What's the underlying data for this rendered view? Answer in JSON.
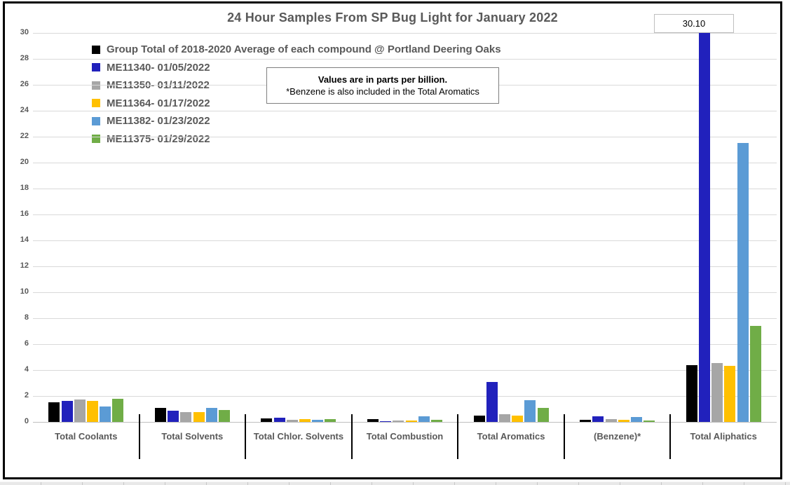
{
  "chart_data": {
    "type": "bar",
    "title": "24 Hour Samples From SP Bug Light for January 2022",
    "note_line1": "Values are in parts per billion.",
    "note_line2": "*Benzene is also included in the Total Aromatics",
    "categories": [
      "Total Coolants",
      "Total Solvents",
      "Total Chlor. Solvents",
      "Total Combustion",
      "Total Aromatics",
      "(Benzene)*",
      "Total Aliphatics"
    ],
    "series": [
      {
        "name": "Group Total of 2018-2020 Average of each compound @ Portland Deering Oaks",
        "color": "#000000",
        "values": [
          1.5,
          1.1,
          0.25,
          0.2,
          0.5,
          0.15,
          4.4
        ]
      },
      {
        "name": "ME11340- 01/05/2022",
        "color": "#2121bc",
        "values": [
          1.6,
          0.85,
          0.35,
          0.05,
          3.1,
          0.45,
          30.1
        ]
      },
      {
        "name": "ME11350- 01/11/2022",
        "color": "#a6a6a6",
        "values": [
          1.75,
          0.75,
          0.15,
          0.1,
          0.6,
          0.2,
          4.55
        ]
      },
      {
        "name": "ME11364- 01/17/2022",
        "color": "#ffc000",
        "values": [
          1.6,
          0.75,
          0.2,
          0.1,
          0.5,
          0.15,
          4.35
        ]
      },
      {
        "name": "ME11382- 01/23/2022",
        "color": "#5b9bd5",
        "values": [
          1.2,
          1.1,
          0.15,
          0.45,
          1.7,
          0.4,
          21.5
        ]
      },
      {
        "name": "ME11375- 01/29/2022",
        "color": "#70ad47",
        "values": [
          1.8,
          0.9,
          0.2,
          0.15,
          1.1,
          0.1,
          7.4
        ]
      }
    ],
    "ylim": [
      0,
      30
    ],
    "ytick_step": 2,
    "grid": true,
    "legend_position": "top-left",
    "data_label": {
      "text": "30.10",
      "series_name": "ME11340- 01/05/2022",
      "category": "Total Aliphatics"
    },
    "colors": {
      "text": "#595959",
      "gridline": "#d9d9d9",
      "axis_line": "#bfbfbf",
      "border": "#000000"
    }
  }
}
